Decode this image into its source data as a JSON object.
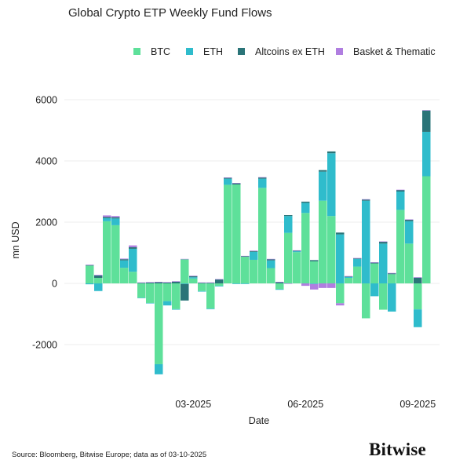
{
  "title": "Global Crypto ETP Weekly Fund Flows",
  "source": "Source: Bloomberg, Bitwise Europe; data as of  03-10-2025",
  "brand": "Bitwise",
  "colors": {
    "BTC": "#5ee09a",
    "ETH": "#2fbccc",
    "Altcoins ex ETH": "#2a7478",
    "Basket & Thematic": "#b07ee0"
  },
  "chart_data": {
    "type": "bar",
    "stacked": true,
    "title": "Global Crypto ETP Weekly Fund Flows",
    "xlabel": "Date",
    "ylabel": "mn USD",
    "ylim": [
      -3100,
      6300
    ],
    "yticks": [
      -2000,
      0,
      2000,
      4000,
      6000
    ],
    "xtick_labels": [
      {
        "label": "03-2025",
        "week_index": 12
      },
      {
        "label": "06-2025",
        "week_index": 25
      },
      {
        "label": "09-2025",
        "week_index": 38
      }
    ],
    "grid": true,
    "legend_position": "top",
    "series": [
      {
        "name": "BTC",
        "values": [
          580,
          180,
          2030,
          1900,
          510,
          380,
          -470,
          -640,
          -2640,
          -580,
          -840,
          790,
          160,
          -250,
          -820,
          -80,
          3220,
          3230,
          870,
          770,
          3120,
          500,
          -190,
          1650,
          1020,
          2300,
          720,
          2700,
          2200,
          -650,
          180,
          550,
          -1140,
          650,
          -860,
          300,
          2400,
          1300,
          -850,
          3500
        ]
      },
      {
        "name": "ETH",
        "values": [
          -30,
          -250,
          100,
          220,
          240,
          750,
          -10,
          -10,
          -330,
          -140,
          -20,
          -20,
          40,
          -20,
          -20,
          -20,
          200,
          -20,
          -20,
          260,
          300,
          250,
          -20,
          550,
          30,
          330,
          -20,
          950,
          2050,
          1600,
          30,
          250,
          2700,
          -420,
          1300,
          -920,
          600,
          730,
          -580,
          1450
        ]
      },
      {
        "name": "Altcoins ex ETH",
        "values": [
          20,
          80,
          40,
          40,
          40,
          50,
          20,
          30,
          40,
          30,
          60,
          -540,
          40,
          20,
          20,
          130,
          30,
          40,
          20,
          30,
          40,
          40,
          40,
          30,
          20,
          40,
          40,
          50,
          60,
          60,
          20,
          20,
          40,
          30,
          60,
          30,
          50,
          50,
          190,
          700
        ]
      },
      {
        "name": "Basket & Thematic",
        "values": [
          10,
          20,
          50,
          40,
          20,
          60,
          10,
          10,
          10,
          10,
          10,
          10,
          10,
          10,
          10,
          10,
          10,
          10,
          10,
          10,
          10,
          10,
          10,
          -10,
          10,
          -80,
          -180,
          -150,
          -150,
          -70,
          10,
          10,
          10,
          10,
          10,
          10,
          10,
          10,
          10,
          10
        ]
      }
    ]
  }
}
